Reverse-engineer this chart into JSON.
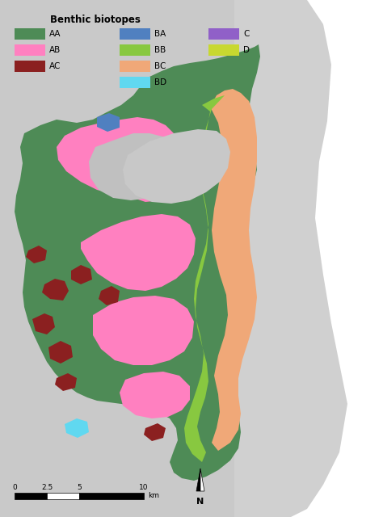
{
  "title": "Benthic biotopes",
  "background_color": "#c9c9c9",
  "legend_items": [
    {
      "label": "AA",
      "color": "#4e8b56"
    },
    {
      "label": "AB",
      "color": "#ff80c0"
    },
    {
      "label": "AC",
      "color": "#8b2020"
    },
    {
      "label": "BA",
      "color": "#5080c0"
    },
    {
      "label": "BB",
      "color": "#88c840"
    },
    {
      "label": "BC",
      "color": "#f0a878"
    },
    {
      "label": "BD",
      "color": "#60d8f0"
    },
    {
      "label": "C",
      "color": "#9060c8"
    },
    {
      "label": "D",
      "color": "#c8d830"
    }
  ],
  "scale_ticks": [
    0,
    2.5,
    5,
    10
  ],
  "scale_label": "km",
  "figsize": [
    4.74,
    6.4
  ],
  "dpi": 100,
  "map_bg": "#c9c9c9",
  "water_color": "#ffffff",
  "ocean_right_color": "#ffffff",
  "land_gray_color": "#b8b8b8"
}
